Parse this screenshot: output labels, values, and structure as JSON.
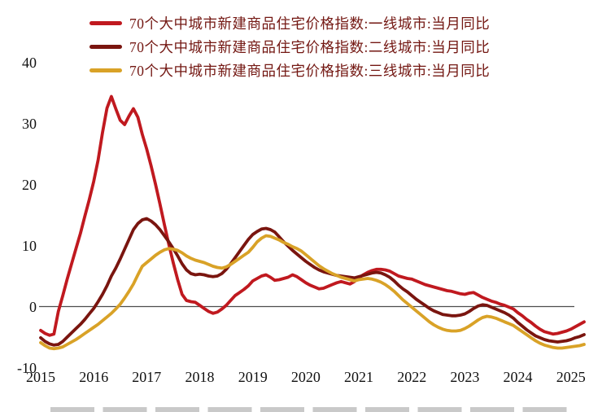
{
  "page": {
    "background": "#ffffff"
  },
  "chart_data": {
    "type": "line",
    "title": "",
    "xlabel": "",
    "ylabel": "",
    "frequency": "monthly",
    "x_start": "2015-01",
    "x_end": "2025-04",
    "x_tick_labels": [
      "2015",
      "2016",
      "2017",
      "2018",
      "2019",
      "2020",
      "2021",
      "2022",
      "2023",
      "2024",
      "2025"
    ],
    "ytick_labels": [
      "40",
      "30",
      "20",
      "10",
      "0",
      "-10"
    ],
    "yticks": [
      40,
      30,
      20,
      10,
      0,
      -10
    ],
    "ylim": [
      -10,
      40
    ],
    "grid": false,
    "zero_line": true,
    "zero_line_color": "#4d4d4d",
    "axis_text_color": "#111111",
    "legend_position": "top-left",
    "legend_text_color": "#731712",
    "series": [
      {
        "name": "70个大中城市新建商品住宅价格指数:一线城市:当月同比",
        "color": "#c0191f",
        "values": [
          -3.9,
          -4.4,
          -4.7,
          -4.5,
          -0.8,
          1.8,
          4.5,
          7.0,
          9.5,
          12.0,
          14.8,
          17.5,
          20.5,
          24.0,
          28.5,
          32.5,
          34.4,
          32.4,
          30.5,
          29.8,
          31.2,
          32.4,
          31.0,
          28.2,
          25.8,
          23.0,
          20.0,
          16.8,
          13.4,
          10.2,
          7.2,
          4.4,
          2.0,
          1.0,
          0.8,
          0.7,
          0.2,
          -0.3,
          -0.8,
          -1.1,
          -0.9,
          -0.4,
          0.2,
          1.0,
          1.8,
          2.3,
          2.8,
          3.4,
          4.2,
          4.6,
          5.0,
          5.2,
          4.8,
          4.3,
          4.4,
          4.6,
          4.8,
          5.2,
          4.9,
          4.4,
          3.9,
          3.5,
          3.2,
          2.9,
          3.0,
          3.3,
          3.6,
          3.9,
          4.1,
          3.9,
          3.7,
          4.1,
          4.7,
          5.2,
          5.6,
          5.9,
          6.1,
          6.1,
          6.0,
          5.8,
          5.4,
          5.0,
          4.8,
          4.6,
          4.5,
          4.2,
          3.9,
          3.6,
          3.4,
          3.2,
          3.0,
          2.8,
          2.6,
          2.5,
          2.3,
          2.1,
          2.0,
          2.2,
          2.3,
          1.9,
          1.5,
          1.2,
          0.9,
          0.7,
          0.4,
          0.2,
          -0.1,
          -0.4,
          -1.0,
          -1.5,
          -2.1,
          -2.6,
          -3.2,
          -3.7,
          -4.1,
          -4.3,
          -4.5,
          -4.4,
          -4.2,
          -4.0,
          -3.7,
          -3.3,
          -2.9,
          -2.5
        ]
      },
      {
        "name": "70个大中城市新建商品住宅价格指数:二线城市:当月同比",
        "color": "#7a150f",
        "values": [
          -5.1,
          -5.7,
          -6.1,
          -6.3,
          -6.2,
          -5.7,
          -5.0,
          -4.3,
          -3.6,
          -2.9,
          -2.1,
          -1.2,
          -0.3,
          0.8,
          2.0,
          3.4,
          5.0,
          6.3,
          7.8,
          9.4,
          11.0,
          12.6,
          13.6,
          14.2,
          14.4,
          14.0,
          13.4,
          12.6,
          11.6,
          10.6,
          9.5,
          8.3,
          7.0,
          6.0,
          5.4,
          5.2,
          5.3,
          5.2,
          5.0,
          4.9,
          5.0,
          5.4,
          6.1,
          7.0,
          8.0,
          9.0,
          10.0,
          11.0,
          11.8,
          12.3,
          12.7,
          12.8,
          12.6,
          12.2,
          11.4,
          10.6,
          9.9,
          9.2,
          8.6,
          8.0,
          7.4,
          6.9,
          6.4,
          6.0,
          5.7,
          5.5,
          5.3,
          5.1,
          5.0,
          4.9,
          4.8,
          4.7,
          4.9,
          5.1,
          5.3,
          5.5,
          5.6,
          5.5,
          5.2,
          4.8,
          4.2,
          3.5,
          2.9,
          2.4,
          1.8,
          1.2,
          0.7,
          0.2,
          -0.3,
          -0.7,
          -1.0,
          -1.3,
          -1.4,
          -1.5,
          -1.5,
          -1.4,
          -1.2,
          -0.8,
          -0.3,
          0.1,
          0.3,
          0.2,
          -0.1,
          -0.4,
          -0.7,
          -1.0,
          -1.4,
          -1.9,
          -2.6,
          -3.2,
          -3.8,
          -4.3,
          -4.8,
          -5.1,
          -5.4,
          -5.6,
          -5.7,
          -5.8,
          -5.7,
          -5.6,
          -5.4,
          -5.1,
          -4.9,
          -4.6
        ]
      },
      {
        "name": "70个大中城市新建商品住宅价格指数:三线城市:当月同比",
        "color": "#d9a227",
        "values": [
          -5.9,
          -6.4,
          -6.8,
          -6.9,
          -6.8,
          -6.6,
          -6.2,
          -5.8,
          -5.4,
          -4.9,
          -4.4,
          -3.9,
          -3.4,
          -2.9,
          -2.3,
          -1.7,
          -1.1,
          -0.4,
          0.4,
          1.4,
          2.5,
          3.7,
          5.2,
          6.6,
          7.2,
          7.8,
          8.4,
          8.9,
          9.3,
          9.5,
          9.4,
          9.2,
          8.8,
          8.3,
          7.9,
          7.6,
          7.4,
          7.2,
          6.9,
          6.6,
          6.4,
          6.3,
          6.5,
          6.9,
          7.4,
          7.9,
          8.4,
          8.9,
          9.7,
          10.6,
          11.2,
          11.6,
          11.5,
          11.2,
          10.9,
          10.5,
          10.2,
          9.8,
          9.5,
          9.1,
          8.5,
          7.9,
          7.3,
          6.7,
          6.2,
          5.8,
          5.4,
          5.1,
          4.8,
          4.6,
          4.4,
          4.2,
          4.4,
          4.5,
          4.6,
          4.5,
          4.3,
          4.0,
          3.6,
          3.1,
          2.5,
          1.8,
          1.1,
          0.5,
          -0.1,
          -0.7,
          -1.3,
          -1.9,
          -2.5,
          -3.0,
          -3.4,
          -3.7,
          -3.9,
          -4.0,
          -4.0,
          -3.9,
          -3.6,
          -3.2,
          -2.7,
          -2.2,
          -1.8,
          -1.6,
          -1.7,
          -1.9,
          -2.2,
          -2.5,
          -2.8,
          -3.1,
          -3.6,
          -4.1,
          -4.6,
          -5.1,
          -5.6,
          -6.0,
          -6.3,
          -6.5,
          -6.7,
          -6.8,
          -6.8,
          -6.7,
          -6.6,
          -6.5,
          -6.4,
          -6.2
        ]
      }
    ]
  }
}
